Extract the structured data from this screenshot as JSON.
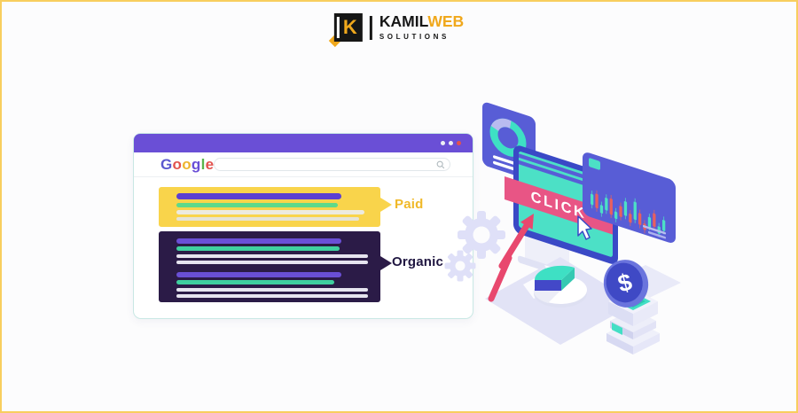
{
  "frame": {
    "background": "#FCFCFD",
    "border_color": "#F8CE5E"
  },
  "logo": {
    "mark_letter": "K",
    "word_primary": "KAMIL",
    "word_accent": "WEB",
    "subtitle": "SOLUTIONS",
    "color_dark": "#161616",
    "color_accent": "#F0A81C"
  },
  "browser": {
    "titlebar_color": "#6A4FD6",
    "border_color": "#C9E8E4",
    "dots": [
      "#EDEFF4",
      "#EDEFF4",
      "#E2524E"
    ],
    "google_letters": [
      {
        "ch": "G",
        "color": "#5A58CF"
      },
      {
        "ch": "o",
        "color": "#E2524E"
      },
      {
        "ch": "o",
        "color": "#EFB42F"
      },
      {
        "ch": "g",
        "color": "#6A4FD6"
      },
      {
        "ch": "l",
        "color": "#59B54C"
      },
      {
        "ch": "e",
        "color": "#E2524E"
      }
    ],
    "search_value": "",
    "results": [
      {
        "label": "Paid",
        "label_color": "#F0B929",
        "bg": "#F9D44B"
      },
      {
        "label": "Organic",
        "label_color": "#201741",
        "bg": "#2B1B47"
      }
    ]
  },
  "illustration": {
    "click_label": "CLICK",
    "dollar_symbol": "$",
    "colors": {
      "card": "#585DD6",
      "monitor_frame": "#3A49C6",
      "screen": "#4CE0C6",
      "banner": "#E85585",
      "growth_arrow": "#E8486E",
      "donut": "#3EE0C4",
      "donut_alt": "#B9BBF0",
      "gear": "#DFE0F8",
      "platform": "#E2E3F6",
      "coin_face": "#3F49C5",
      "coin_rim": "#6A74DD",
      "candle_up": "#4CE0C6",
      "candle_down": "#E8605E",
      "box_top": "#43DFC5"
    },
    "candles": [
      {
        "h": 12,
        "o": 0,
        "dir": "up"
      },
      {
        "h": 16,
        "o": 2,
        "dir": "down"
      },
      {
        "h": 9,
        "o": 6,
        "dir": "up"
      },
      {
        "h": 14,
        "o": 1,
        "dir": "up"
      },
      {
        "h": 18,
        "o": 4,
        "dir": "down"
      },
      {
        "h": 8,
        "o": 7,
        "dir": "up"
      },
      {
        "h": 12,
        "o": 3,
        "dir": "down"
      },
      {
        "h": 16,
        "o": 0,
        "dir": "up"
      },
      {
        "h": 10,
        "o": 6,
        "dir": "down"
      },
      {
        "h": 20,
        "o": 1,
        "dir": "up"
      },
      {
        "h": 13,
        "o": 5,
        "dir": "down"
      },
      {
        "h": 7,
        "o": 9,
        "dir": "down"
      },
      {
        "h": 11,
        "o": 4,
        "dir": "up"
      },
      {
        "h": 15,
        "o": 2,
        "dir": "down"
      },
      {
        "h": 8,
        "o": 8,
        "dir": "up"
      },
      {
        "h": 12,
        "o": 3,
        "dir": "up"
      }
    ]
  }
}
